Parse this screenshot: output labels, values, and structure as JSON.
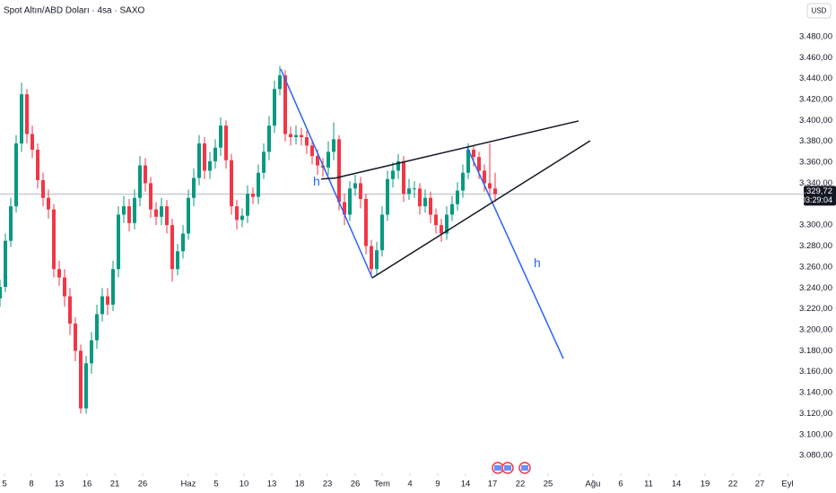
{
  "chart_data": {
    "type": "candlestick",
    "title": "Spot Altın/ABD Doları · 4sa · SAXO",
    "currency": "USD",
    "x": [
      0,
      6,
      12,
      18,
      24,
      30,
      36,
      42,
      48,
      54,
      60,
      66,
      72,
      78,
      84,
      90,
      96,
      102,
      108,
      114,
      120,
      126,
      132,
      138,
      144,
      150,
      156,
      162,
      168,
      174,
      180,
      186,
      192,
      198,
      204,
      210,
      216,
      222,
      228,
      234,
      240,
      246,
      252,
      258,
      264,
      270,
      276,
      282,
      288,
      294,
      300,
      306,
      312,
      318,
      324,
      330,
      336,
      342,
      348,
      354,
      360,
      366,
      372,
      378,
      384,
      390,
      396,
      402,
      408,
      414,
      420,
      426,
      432,
      438,
      444,
      450,
      456,
      462,
      468,
      474,
      480,
      486,
      492,
      498,
      504,
      510,
      516,
      522,
      528,
      534,
      540,
      546,
      552
    ],
    "open": [
      3230,
      3241,
      3285,
      3318,
      3378,
      3425,
      3387,
      3372,
      3343,
      3326,
      3315,
      3258,
      3250,
      3232,
      3206,
      3180,
      3125,
      3168,
      3190,
      3215,
      3232,
      3224,
      3258,
      3310,
      3318,
      3302,
      3326,
      3357,
      3340,
      3315,
      3308,
      3318,
      3300,
      3258,
      3275,
      3292,
      3326,
      3345,
      3378,
      3352,
      3361,
      3374,
      3395,
      3362,
      3318,
      3305,
      3309,
      3330,
      3327,
      3350,
      3370,
      3395,
      3430,
      3443,
      3387,
      3384,
      3386,
      3384,
      3376,
      3366,
      3357,
      3355,
      3370,
      3382,
      3322,
      3310,
      3335,
      3340,
      3325,
      3280,
      3258,
      3276,
      3310,
      3344,
      3352,
      3361,
      3330,
      3335,
      3335,
      3318,
      3326,
      3310,
      3300,
      3292,
      3310,
      3320,
      3333,
      3350,
      3372,
      3365,
      3352,
      3340,
      3335
    ],
    "high": [
      3248,
      3292,
      3326,
      3386,
      3436,
      3430,
      3395,
      3378,
      3350,
      3334,
      3320,
      3266,
      3258,
      3240,
      3212,
      3186,
      3175,
      3198,
      3224,
      3240,
      3240,
      3266,
      3318,
      3328,
      3325,
      3334,
      3366,
      3364,
      3346,
      3322,
      3326,
      3324,
      3306,
      3282,
      3300,
      3334,
      3354,
      3386,
      3384,
      3370,
      3382,
      3403,
      3400,
      3368,
      3324,
      3316,
      3338,
      3336,
      3358,
      3378,
      3404,
      3438,
      3452,
      3448,
      3394,
      3395,
      3393,
      3390,
      3382,
      3372,
      3364,
      3380,
      3398,
      3386,
      3330,
      3342,
      3348,
      3346,
      3330,
      3286,
      3284,
      3318,
      3352,
      3360,
      3368,
      3366,
      3344,
      3342,
      3340,
      3334,
      3332,
      3316,
      3306,
      3318,
      3328,
      3341,
      3358,
      3378,
      3376,
      3370,
      3358,
      3378,
      3350
    ],
    "low": [
      3222,
      3236,
      3279,
      3312,
      3370,
      3378,
      3364,
      3335,
      3318,
      3306,
      3250,
      3242,
      3222,
      3195,
      3170,
      3120,
      3120,
      3158,
      3182,
      3208,
      3214,
      3218,
      3250,
      3302,
      3294,
      3296,
      3318,
      3332,
      3307,
      3300,
      3300,
      3292,
      3246,
      3252,
      3268,
      3286,
      3318,
      3338,
      3344,
      3344,
      3354,
      3366,
      3354,
      3310,
      3296,
      3298,
      3302,
      3320,
      3320,
      3344,
      3362,
      3388,
      3424,
      3380,
      3376,
      3377,
      3376,
      3368,
      3358,
      3348,
      3346,
      3348,
      3362,
      3314,
      3300,
      3304,
      3328,
      3316,
      3272,
      3250,
      3252,
      3270,
      3304,
      3336,
      3344,
      3322,
      3324,
      3326,
      3310,
      3312,
      3302,
      3292,
      3284,
      3286,
      3304,
      3314,
      3326,
      3344,
      3356,
      3344,
      3332,
      3326,
      3322
    ],
    "close": [
      3241,
      3285,
      3318,
      3378,
      3425,
      3387,
      3372,
      3343,
      3326,
      3315,
      3258,
      3250,
      3232,
      3206,
      3180,
      3125,
      3168,
      3190,
      3215,
      3232,
      3224,
      3258,
      3310,
      3318,
      3302,
      3326,
      3357,
      3340,
      3315,
      3308,
      3318,
      3300,
      3258,
      3275,
      3292,
      3326,
      3345,
      3378,
      3352,
      3361,
      3374,
      3395,
      3362,
      3318,
      3305,
      3309,
      3330,
      3327,
      3350,
      3370,
      3395,
      3430,
      3443,
      3387,
      3384,
      3386,
      3384,
      3376,
      3366,
      3357,
      3355,
      3370,
      3382,
      3322,
      3310,
      3335,
      3340,
      3325,
      3280,
      3258,
      3276,
      3310,
      3344,
      3352,
      3361,
      3330,
      3335,
      3335,
      3318,
      3326,
      3310,
      3300,
      3292,
      3310,
      3320,
      3333,
      3350,
      3372,
      3365,
      3352,
      3340,
      3335,
      3329.72
    ],
    "up_color": "#089981",
    "down_color": "#f23645",
    "xlim": [
      0,
      895
    ],
    "ylim": [
      3063,
      3515
    ],
    "xticks": [
      {
        "value": 5,
        "label": "5"
      },
      {
        "value": 35,
        "label": "8"
      },
      {
        "value": 66,
        "label": "13"
      },
      {
        "value": 97,
        "label": "16"
      },
      {
        "value": 128,
        "label": "21"
      },
      {
        "value": 159,
        "label": "26"
      },
      {
        "value": 210,
        "label": "Haz"
      },
      {
        "value": 241,
        "label": "5"
      },
      {
        "value": 272,
        "label": "10"
      },
      {
        "value": 303,
        "label": "13"
      },
      {
        "value": 334,
        "label": "18"
      },
      {
        "value": 365,
        "label": "23"
      },
      {
        "value": 396,
        "label": "26"
      },
      {
        "value": 426,
        "label": "Tem"
      },
      {
        "value": 457,
        "label": "4"
      },
      {
        "value": 488,
        "label": "9"
      },
      {
        "value": 519,
        "label": "14"
      },
      {
        "value": 549,
        "label": "17"
      },
      {
        "value": 580,
        "label": "22"
      },
      {
        "value": 611,
        "label": "25"
      },
      {
        "value": 661,
        "label": "Ağu"
      },
      {
        "value": 692,
        "label": "6"
      },
      {
        "value": 723,
        "label": "11"
      },
      {
        "value": 754,
        "label": "14"
      },
      {
        "value": 786,
        "label": "19"
      },
      {
        "value": 817,
        "label": "22"
      },
      {
        "value": 847,
        "label": "27"
      },
      {
        "value": 878,
        "label": "Eyl"
      }
    ],
    "yticks": [
      {
        "value": 3480,
        "label": "3.480,00"
      },
      {
        "value": 3460,
        "label": "3.460,00"
      },
      {
        "value": 3440,
        "label": "3.440,00"
      },
      {
        "value": 3420,
        "label": "3.420,00"
      },
      {
        "value": 3400,
        "label": "3.400,00"
      },
      {
        "value": 3380,
        "label": "3.380,00"
      },
      {
        "value": 3360,
        "label": "3.360,00"
      },
      {
        "value": 3340,
        "label": "3.340,00"
      },
      {
        "value": 3300,
        "label": "3.300,00"
      },
      {
        "value": 3280,
        "label": "3.280,00"
      },
      {
        "value": 3260,
        "label": "3.260,00"
      },
      {
        "value": 3240,
        "label": "3.240,00"
      },
      {
        "value": 3220,
        "label": "3.220,00"
      },
      {
        "value": 3200,
        "label": "3.200,00"
      },
      {
        "value": 3180,
        "label": "3.180,00"
      },
      {
        "value": 3160,
        "label": "3.160,00"
      },
      {
        "value": 3140,
        "label": "3.140,00"
      },
      {
        "value": 3120,
        "label": "3.120,00"
      },
      {
        "value": 3100,
        "label": "3.100,00"
      },
      {
        "value": 3080,
        "label": "3.080,00"
      }
    ],
    "last_price": {
      "value": 3329.72,
      "label": "3.329,72"
    },
    "countdown": "03:29:04",
    "drawings": [
      {
        "color": "#2962ff",
        "x": [
          313,
          415
        ],
        "y": [
          3449,
          3249.6
        ]
      },
      {
        "color": "#2962ff",
        "x": [
          521,
          628
        ],
        "y": [
          3374,
          3172.5
        ]
      },
      {
        "color": "#131722",
        "x": [
          358,
          374,
          645
        ],
        "y": [
          3344,
          3345,
          3399.5
        ]
      },
      {
        "color": "#131722",
        "x": [
          415,
          658
        ],
        "y": [
          3249.6,
          3380.6
        ]
      }
    ],
    "annotations": [
      {
        "text": "h",
        "x": 349,
        "y": 3341,
        "color": "#2962ff"
      },
      {
        "text": "h",
        "x": 595,
        "y": 3263,
        "color": "#2962ff"
      }
    ]
  }
}
